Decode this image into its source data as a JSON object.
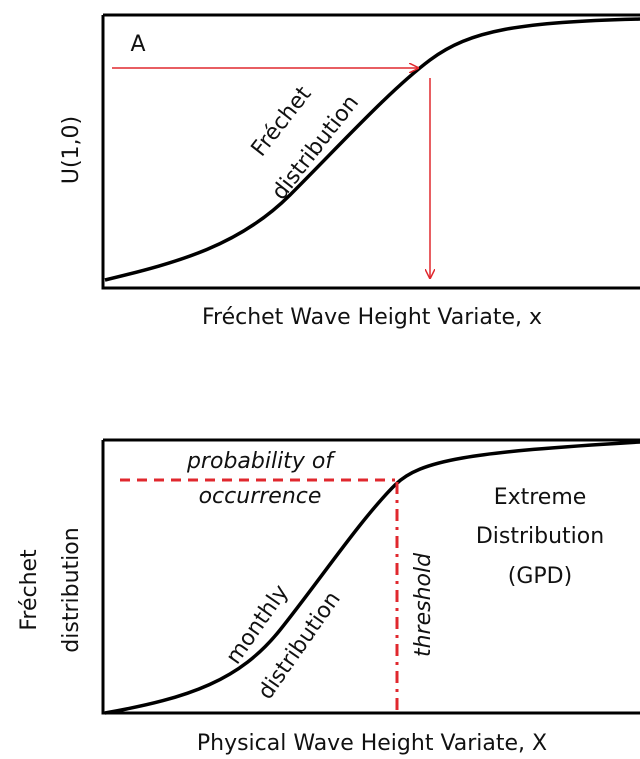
{
  "top_panel": {
    "point_label": "A",
    "curve_label": [
      "Fréchet",
      "distribution"
    ],
    "y_axis_label": "U(1,0)",
    "x_axis_label": "Fréchet Wave Height Variate,  x"
  },
  "bottom_panel": {
    "probability_label": [
      "probability of",
      "occurrence"
    ],
    "extreme_label": [
      "Extreme",
      "Distribution",
      "(GPD)"
    ],
    "threshold_label": "threshold",
    "curve_label": [
      "monthly",
      "distribution"
    ],
    "y_axis_label": [
      "Fréchet",
      "distribution"
    ],
    "x_axis_label": "Physical Wave Height Variate, X"
  }
}
